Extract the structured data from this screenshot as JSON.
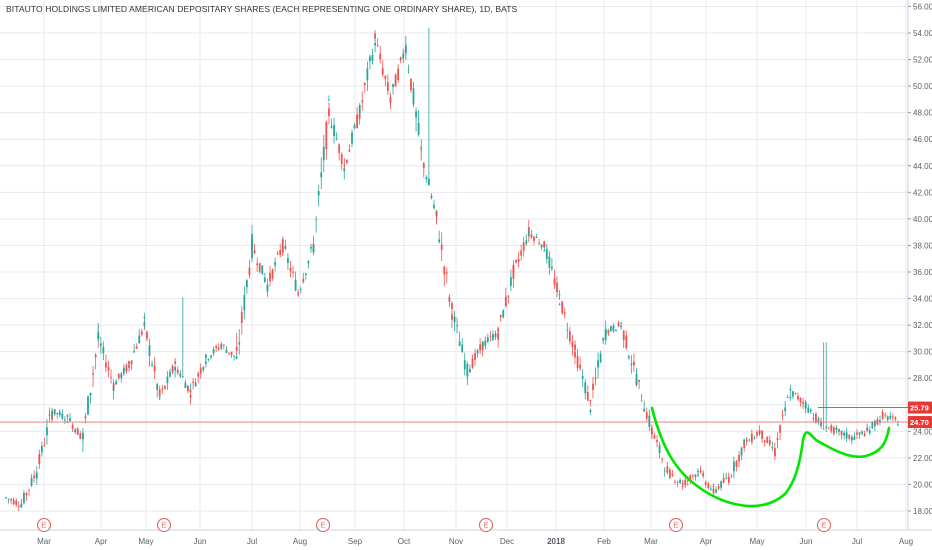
{
  "chart_data": {
    "type": "candlestick",
    "title": "BITAUTO HOLDINGS LIMITED AMERICAN DEPOSITARY SHARES (EACH REPRESENTING ONE ORDINARY SHARE), 1D, BATS",
    "ylim": [
      16,
      57
    ],
    "y_ticks": [
      "56.00",
      "54.00",
      "52.00",
      "50.00",
      "48.00",
      "46.00",
      "44.00",
      "42.00",
      "40.00",
      "38.00",
      "36.00",
      "34.00",
      "32.00",
      "30.00",
      "28.00",
      "26.00",
      "24.00",
      "22.00",
      "20.00",
      "18.00"
    ],
    "x_ticks": [
      "Mar",
      "Apr",
      "May",
      "Jun",
      "Jul",
      "Aug",
      "Sep",
      "Oct",
      "Nov",
      "Dec",
      "2018",
      "Feb",
      "Mar",
      "Apr",
      "May",
      "Jun",
      "Jul",
      "Aug"
    ],
    "price_series": [
      [
        "Feb",
        19
      ],
      [
        "Mar",
        18.5
      ],
      [
        "Mar",
        21
      ],
      [
        "Mar",
        25.5
      ],
      [
        "Apr",
        25
      ],
      [
        "Apr",
        23.5
      ],
      [
        "May",
        31
      ],
      [
        "May",
        27.5
      ],
      [
        "May",
        29
      ],
      [
        "Jun",
        32
      ],
      [
        "Jun",
        26.5
      ],
      [
        "Jun",
        29
      ],
      [
        "Jul",
        27
      ],
      [
        "Jul",
        29.5
      ],
      [
        "Jul",
        30.5
      ],
      [
        "Aug",
        29.5
      ],
      [
        "Aug",
        38
      ],
      [
        "Aug",
        35
      ],
      [
        "Sep",
        38
      ],
      [
        "Sep",
        34.5
      ],
      [
        "Sep",
        38
      ],
      [
        "Sep",
        48
      ],
      [
        "Oct",
        44
      ],
      [
        "Oct",
        48
      ],
      [
        "Oct",
        53.5
      ],
      [
        "Oct",
        49
      ],
      [
        "Nov",
        53
      ],
      [
        "Nov",
        45
      ],
      [
        "Nov",
        40
      ],
      [
        "Nov",
        33
      ],
      [
        "Dec",
        28.5
      ],
      [
        "Dec",
        30.5
      ],
      [
        "Dec",
        31.5
      ],
      [
        "Dec",
        36
      ],
      [
        "2018",
        39
      ],
      [
        "2018",
        38
      ],
      [
        "Feb",
        34
      ],
      [
        "Feb",
        30
      ],
      [
        "Feb",
        26
      ],
      [
        "Mar",
        31.5
      ],
      [
        "Mar",
        32
      ],
      [
        "Mar",
        28
      ],
      [
        "Mar",
        24
      ],
      [
        "Apr",
        21
      ],
      [
        "Apr",
        20
      ],
      [
        "Apr",
        21
      ],
      [
        "May",
        19.5
      ],
      [
        "May",
        20.5
      ],
      [
        "May",
        23
      ],
      [
        "May",
        24
      ],
      [
        "Jun",
        22.5
      ],
      [
        "Jun",
        27
      ],
      [
        "Jun",
        26
      ],
      [
        "Jun",
        24.5
      ],
      [
        "Jul",
        24
      ],
      [
        "Jul",
        23.5
      ],
      [
        "Jul",
        24
      ],
      [
        "Jul",
        25.2
      ],
      [
        "Jul",
        24.7
      ]
    ],
    "price_badges": [
      {
        "label": "25.79",
        "value": 25.79,
        "color": "#e53935"
      },
      {
        "label": "24.70",
        "value": 24.7,
        "color": "#e53935"
      }
    ],
    "horizontal_lines": [
      25.79,
      24.7
    ],
    "events": [
      {
        "label": "E",
        "x": "Mar"
      },
      {
        "label": "E",
        "x": "May"
      },
      {
        "label": "E",
        "x": "Aug"
      },
      {
        "label": "E",
        "x": "Nov"
      },
      {
        "label": "E",
        "x": "Mar"
      },
      {
        "label": "E",
        "x": "Jun"
      }
    ],
    "colors": {
      "up": "#26a69a",
      "down": "#ef5350",
      "annotation": "#00e600",
      "grid": "#e6e9ef",
      "badge": "#e53935"
    },
    "grid": true
  }
}
